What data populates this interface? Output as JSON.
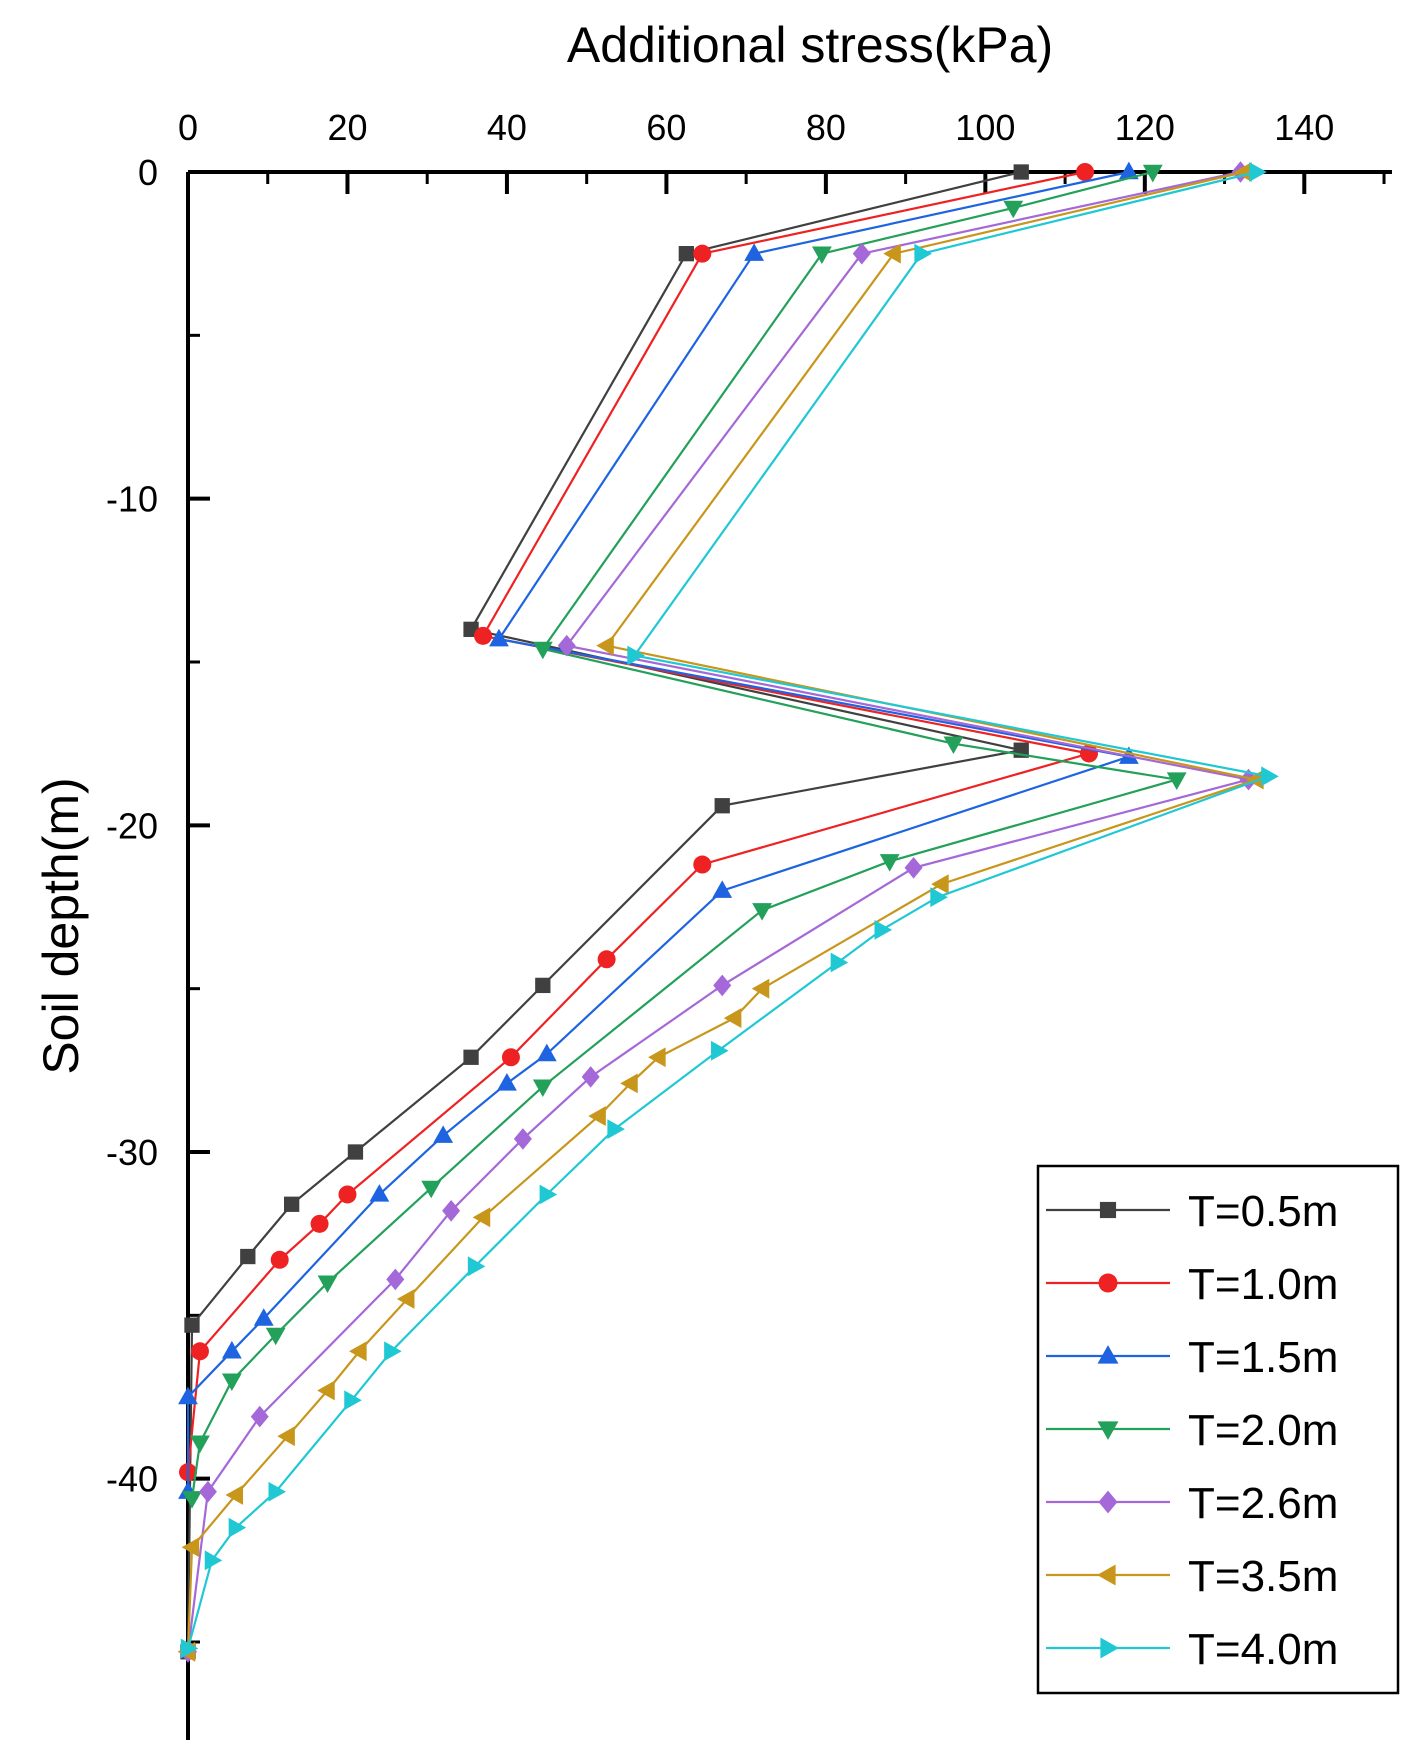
{
  "chart_data": {
    "type": "line",
    "title": "",
    "xlabel": "Additional stress(kPa)",
    "ylabel": "Soil depth(m)",
    "xlim": [
      0,
      151
    ],
    "ylim": [
      -48,
      0
    ],
    "xticks": [
      0,
      20,
      40,
      60,
      80,
      100,
      120,
      140
    ],
    "yticks": [
      0,
      -10,
      -20,
      -30,
      -40
    ],
    "x_tick_labels": [
      "0",
      "20",
      "40",
      "60",
      "80",
      "100",
      "120",
      "140"
    ],
    "y_tick_labels": [
      "0",
      "-10",
      "-20",
      "-30",
      "-40"
    ],
    "x_axis_position": "top",
    "legend_position": "bottom-right",
    "series": [
      {
        "name": "T=0.5m",
        "color": "#404040",
        "marker": "square",
        "points": [
          [
            104.5,
            0
          ],
          [
            62.5,
            -2.5
          ],
          [
            35.5,
            -14.0
          ],
          [
            104.5,
            -17.7
          ],
          [
            67,
            -19.4
          ],
          [
            44.5,
            -24.9
          ],
          [
            35.5,
            -27.1
          ],
          [
            21,
            -30.0
          ],
          [
            13,
            -31.6
          ],
          [
            7.5,
            -33.2
          ],
          [
            0.5,
            -35.3
          ],
          [
            0,
            -45.3
          ]
        ]
      },
      {
        "name": "T=1.0m",
        "color": "#ee2222",
        "marker": "circle",
        "points": [
          [
            112.5,
            0
          ],
          [
            64.5,
            -2.5
          ],
          [
            37,
            -14.2
          ],
          [
            113,
            -17.8
          ],
          [
            64.5,
            -21.2
          ],
          [
            52.5,
            -24.1
          ],
          [
            40.5,
            -27.1
          ],
          [
            20,
            -31.3
          ],
          [
            16.5,
            -32.2
          ],
          [
            11.5,
            -33.3
          ],
          [
            1.5,
            -36.1
          ],
          [
            0,
            -39.8
          ]
        ]
      },
      {
        "name": "T=1.5m",
        "color": "#1e64e0",
        "marker": "triangle-up",
        "points": [
          [
            118,
            0
          ],
          [
            71,
            -2.5
          ],
          [
            39,
            -14.3
          ],
          [
            118,
            -17.9
          ],
          [
            67,
            -22.0
          ],
          [
            45,
            -27.0
          ],
          [
            40,
            -27.9
          ],
          [
            32,
            -29.5
          ],
          [
            24,
            -31.3
          ],
          [
            9.5,
            -35.1
          ],
          [
            5.5,
            -36.1
          ],
          [
            0,
            -37.5
          ],
          [
            0,
            -40.4
          ]
        ]
      },
      {
        "name": "T=2.0m",
        "color": "#23a05a",
        "marker": "triangle-down",
        "points": [
          [
            121,
            0
          ],
          [
            103.5,
            -1.1
          ],
          [
            79.5,
            -2.5
          ],
          [
            44.5,
            -14.6
          ],
          [
            96,
            -17.5
          ],
          [
            124,
            -18.6
          ],
          [
            88,
            -21.1
          ],
          [
            72,
            -22.6
          ],
          [
            44.5,
            -28.0
          ],
          [
            30.5,
            -31.1
          ],
          [
            17.5,
            -34.0
          ],
          [
            11,
            -35.6
          ],
          [
            5.5,
            -37.0
          ],
          [
            1.5,
            -38.9
          ],
          [
            0.5,
            -40.6
          ]
        ]
      },
      {
        "name": "T=2.6m",
        "color": "#a468d8",
        "marker": "diamond",
        "points": [
          [
            132,
            0
          ],
          [
            84.5,
            -2.5
          ],
          [
            47.5,
            -14.5
          ],
          [
            133,
            -18.6
          ],
          [
            91,
            -21.3
          ],
          [
            67,
            -24.9
          ],
          [
            50.5,
            -27.7
          ],
          [
            42,
            -29.6
          ],
          [
            33,
            -31.8
          ],
          [
            26,
            -33.9
          ],
          [
            9,
            -38.1
          ],
          [
            2.5,
            -40.4
          ],
          [
            0,
            -45.3
          ]
        ]
      },
      {
        "name": "T=3.5m",
        "color": "#c8961a",
        "marker": "triangle-left",
        "points": [
          [
            132.5,
            0
          ],
          [
            88.5,
            -2.5
          ],
          [
            52.5,
            -14.5
          ],
          [
            134,
            -18.6
          ],
          [
            94.5,
            -21.8
          ],
          [
            72,
            -25.0
          ],
          [
            68.5,
            -25.9
          ],
          [
            59,
            -27.1
          ],
          [
            55.5,
            -27.9
          ],
          [
            51.5,
            -28.9
          ],
          [
            37,
            -32.0
          ],
          [
            27.5,
            -34.5
          ],
          [
            21.5,
            -36.1
          ],
          [
            17.5,
            -37.3
          ],
          [
            12.5,
            -38.7
          ],
          [
            6,
            -40.5
          ],
          [
            0.5,
            -42.1
          ],
          [
            0,
            -45.3
          ]
        ]
      },
      {
        "name": "T=4.0m",
        "color": "#20c8d4",
        "marker": "triangle-right",
        "points": [
          [
            134,
            0
          ],
          [
            92,
            -2.5
          ],
          [
            56,
            -14.8
          ],
          [
            135.5,
            -18.5
          ],
          [
            94,
            -22.2
          ],
          [
            87,
            -23.2
          ],
          [
            81.5,
            -24.2
          ],
          [
            66.5,
            -26.9
          ],
          [
            53.5,
            -29.3
          ],
          [
            45,
            -31.3
          ],
          [
            36,
            -33.5
          ],
          [
            25.5,
            -36.1
          ],
          [
            20.5,
            -37.6
          ],
          [
            11,
            -40.4
          ],
          [
            6,
            -41.5
          ],
          [
            3,
            -42.5
          ],
          [
            0,
            -45.2
          ]
        ]
      }
    ]
  }
}
